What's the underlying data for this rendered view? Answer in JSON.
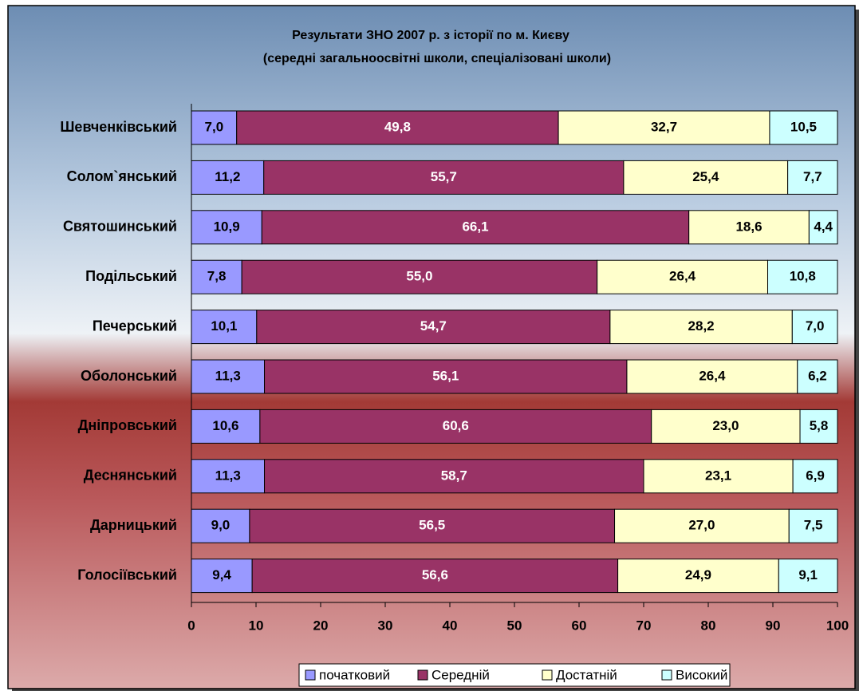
{
  "chart_data": {
    "type": "stacked-bar-horizontal",
    "title": "Результати ЗНО 2007 р. з історії по м. Києву",
    "subtitle": "(середні загальноосвітні школи, спеціалізовані школи)",
    "categories": [
      "Шевченківський",
      "Солом`янський",
      "Святошинський",
      "Подільський",
      "Печерський",
      "Оболонський",
      "Дніпровський",
      "Деснянський",
      "Дарницький",
      "Голосіївський"
    ],
    "series": [
      {
        "name": "початковий",
        "color": "#9999ff",
        "values": [
          7.0,
          11.2,
          10.9,
          7.8,
          10.1,
          11.3,
          10.6,
          11.3,
          9.0,
          9.4
        ],
        "value_labels": [
          "7,0",
          "11,2",
          "10,9",
          "7,8",
          "10,1",
          "11,3",
          "10,6",
          "11,3",
          "9,0",
          "9,4"
        ]
      },
      {
        "name": "Середній",
        "color": "#993366",
        "values": [
          49.8,
          55.7,
          66.1,
          55.0,
          54.7,
          56.1,
          60.6,
          58.7,
          56.5,
          56.6
        ],
        "value_labels": [
          "49,8",
          "55,7",
          "66,1",
          "55,0",
          "54,7",
          "56,1",
          "60,6",
          "58,7",
          "56,5",
          "56,6"
        ]
      },
      {
        "name": "Достатній",
        "color": "#ffffcc",
        "values": [
          32.7,
          25.4,
          18.6,
          26.4,
          28.2,
          26.4,
          23.0,
          23.1,
          27.0,
          24.9
        ],
        "value_labels": [
          "32,7",
          "25,4",
          "18,6",
          "26,4",
          "28,2",
          "26,4",
          "23,0",
          "23,1",
          "27,0",
          "24,9"
        ]
      },
      {
        "name": "Високий",
        "color": "#ccffff",
        "values": [
          10.5,
          7.7,
          4.4,
          10.8,
          7.0,
          6.2,
          5.8,
          6.9,
          7.5,
          9.1
        ],
        "value_labels": [
          "10,5",
          "7,7",
          "4,4",
          "10,8",
          "7,0",
          "6,2",
          "5,8",
          "6,9",
          "7,5",
          "9,1"
        ]
      }
    ],
    "xlim": [
      0,
      100
    ],
    "xticks": [
      0,
      10,
      20,
      30,
      40,
      50,
      60,
      70,
      80,
      90,
      100
    ],
    "legend": "bottom"
  }
}
